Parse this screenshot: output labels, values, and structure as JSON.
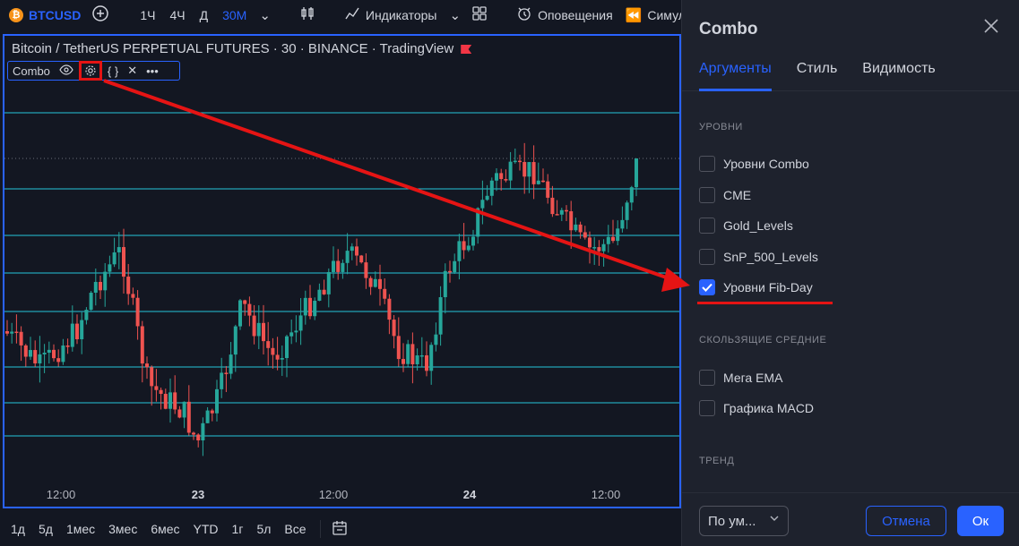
{
  "toolbar": {
    "symbol": "BTCUSD",
    "symbol_icon": "bitcoin-icon",
    "intervals": [
      "1Ч",
      "4Ч",
      "Д",
      "30М"
    ],
    "active_interval": "30М",
    "indicators_label": "Индикаторы",
    "alerts_label": "Оповещения",
    "replay_label": "Симул"
  },
  "chart": {
    "title": "Bitcoin / TetherUS PERPETUAL FUTURES · 30 · BINANCE · TradingView",
    "indicator_name": "Combo",
    "time_labels": [
      {
        "text": "12:00",
        "bold": false
      },
      {
        "text": "23",
        "bold": true
      },
      {
        "text": "12:00",
        "bold": false
      },
      {
        "text": "24",
        "bold": true
      },
      {
        "text": "12:00",
        "bold": false
      }
    ],
    "up_color": "#26a69a",
    "down_color": "#ef5350",
    "level_color": "#26c6da"
  },
  "chart_data": {
    "type": "candlestick",
    "xlabel": "",
    "ylabel": "",
    "x_ticks": [
      "12:00",
      "23",
      "12:00",
      "24",
      "12:00"
    ],
    "level_count": 9,
    "grid": false
  },
  "range_bar": {
    "items": [
      "1д",
      "5д",
      "1мес",
      "3мес",
      "6мес",
      "YTD",
      "1г",
      "5л",
      "Все"
    ]
  },
  "dialog": {
    "title": "Combo",
    "tabs": [
      "Аргументы",
      "Стиль",
      "Видимость"
    ],
    "active_tab": "Аргументы",
    "section_levels": "УРОВНИ",
    "levels_options": [
      {
        "label": "Уровни Combo",
        "checked": false
      },
      {
        "label": "CME",
        "checked": false
      },
      {
        "label": "Gold_Levels",
        "checked": false
      },
      {
        "label": "SnP_500_Levels",
        "checked": false
      },
      {
        "label": "Уровни Fib-Day",
        "checked": true
      }
    ],
    "section_ma": "СКОЛЬЗЯЩИЕ СРЕДНИЕ",
    "ma_options": [
      {
        "label": "Мега EMA",
        "checked": false
      },
      {
        "label": "Графика MACD",
        "checked": false
      }
    ],
    "section_trend": "ТРЕНД",
    "defaults_select": "По ум...",
    "cancel_label": "Отмена",
    "ok_label": "Ок"
  },
  "annotation": {
    "color": "#e51414"
  }
}
